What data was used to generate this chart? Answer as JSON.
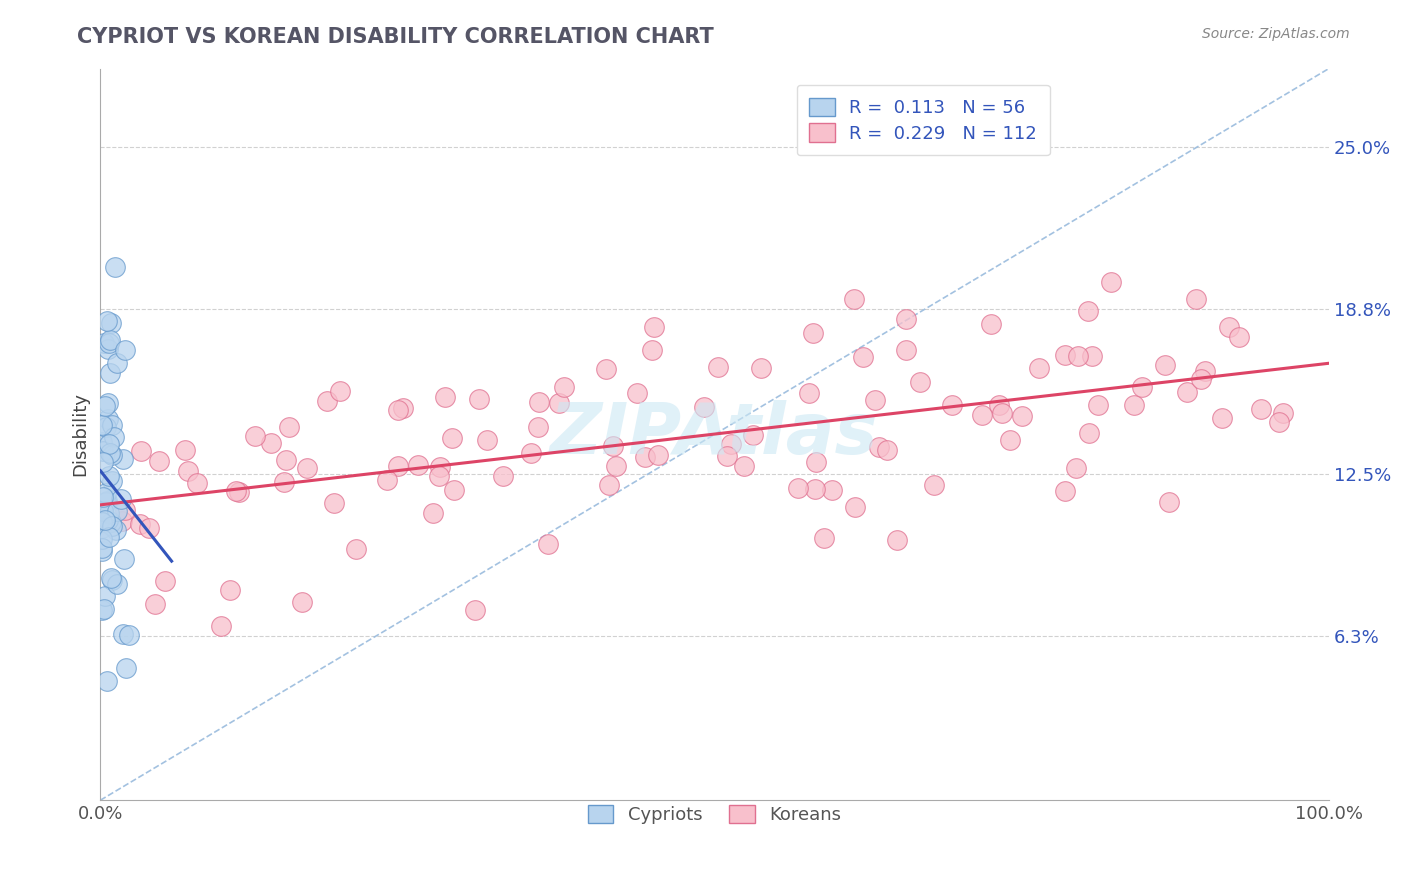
{
  "title": "CYPRIOT VS KOREAN DISABILITY CORRELATION CHART",
  "source": "Source: ZipAtlas.com",
  "ylabel": "Disability",
  "xlim": [
    0.0,
    1.0
  ],
  "ylim": [
    0.0,
    0.28
  ],
  "xticklabels": [
    "0.0%",
    "100.0%"
  ],
  "ytick_positions": [
    0.063,
    0.125,
    0.188,
    0.25
  ],
  "ytick_labels": [
    "6.3%",
    "12.5%",
    "18.8%",
    "25.0%"
  ],
  "cypriot_fill": "#b8d4ee",
  "cypriot_edge": "#6699cc",
  "korean_fill": "#f8c0cc",
  "korean_edge": "#e07090",
  "trend_cypriot_color": "#3355bb",
  "trend_korean_color": "#dd4466",
  "diagonal_color": "#99bbdd",
  "cypriot_R": 0.113,
  "cypriot_N": 56,
  "korean_R": 0.229,
  "korean_N": 112,
  "legend_color": "#3355bb",
  "watermark_color": "#cce8f4",
  "grid_color": "#cccccc"
}
